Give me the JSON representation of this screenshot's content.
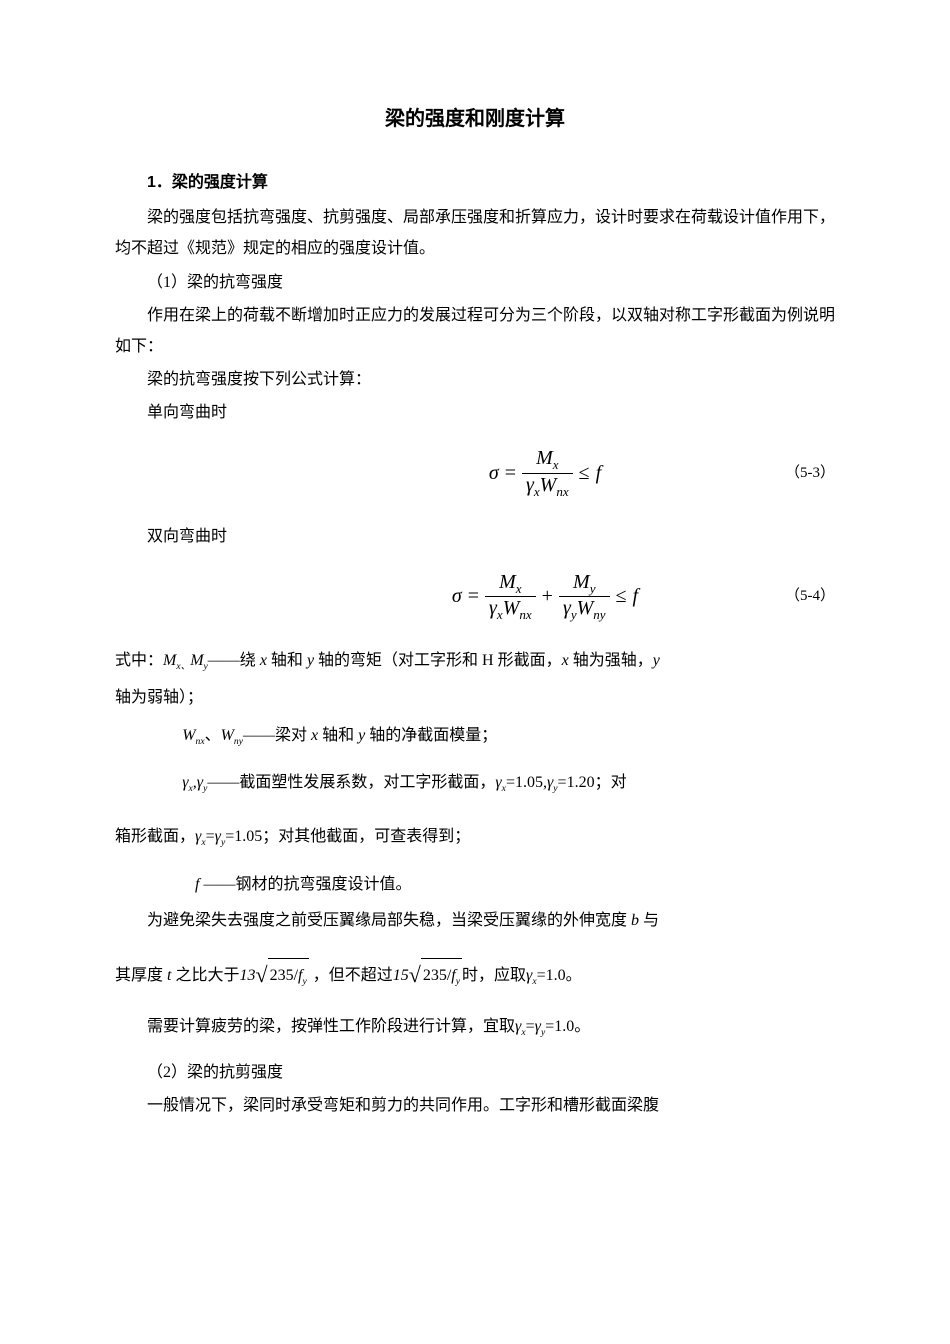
{
  "title": "梁的强度和刚度计算",
  "section1": {
    "number": "1．",
    "heading": "梁的强度计算",
    "intro": "梁的强度包括抗弯强度、抗剪强度、局部承压强度和折算应力，设计时要求在荷载设计值作用下，均不超过《规范》规定的相应的强度设计值。",
    "sub1": "（1）梁的抗弯强度",
    "p1": "作用在梁上的荷载不断增加时正应力的发展过程可分为三个阶段，以双轴对称工字形截面为例说明如下：",
    "p2": "梁的抗弯强度按下列公式计算：",
    "p3": "单向弯曲时",
    "p4": "双向弯曲时",
    "eq1_num": "（5-3）",
    "eq2_num": "（5-4）",
    "def_prefix": "式中：",
    "def1_sym_a": "M",
    "def1_sub_a": "x、",
    "def1_sym_b": "M",
    "def1_sub_b": "y",
    "def1_dash": "——",
    "def1_text_a": "绕 ",
    "def1_var_x": "x",
    "def1_text_b": " 轴和 ",
    "def1_var_y": "y",
    "def1_text_c": " 轴的弯矩（对工字形和 H 形截面，",
    "def1_text_d": " 轴为强轴，",
    "def1_text_e": "轴为弱轴）；",
    "def2_sym_a": "W",
    "def2_sub_a": "nx",
    "def2_sep": "、",
    "def2_sym_b": "W",
    "def2_sub_b": "ny",
    "def2_text": "——梁对 ",
    "def2_text2": " 轴和 ",
    "def2_text3": " 轴的净截面模量；",
    "def3_sym": "γ",
    "def3_sub_x": "x",
    "def3_sep": ",",
    "def3_sub_y": "y",
    "def3_text": "——截面塑性发展系数，对工字形截面，",
    "def3_eq1": "=1.05,",
    "def3_eq2": "=1.20",
    "def3_tail": "；对",
    "def3_cont_a": "箱形截面，",
    "def3_eq3": "=1.05",
    "def3_cont_b": "；对其他截面，可查表得到；",
    "def4_sym": "f",
    "def4_text": " ——钢材的抗弯强度设计值。",
    "p5_a": "为避免梁失去强度之前受压翼缘局部失稳，当梁受压翼缘的外伸宽度 ",
    "p5_var_b": "b",
    "p5_b": " 与",
    "p6_a": "其厚度 ",
    "p6_var_t": "t",
    "p6_b": " 之比大于",
    "p6_coef1": "13",
    "p6_sqrt1": "235/f",
    "p6_sqrt1_sub": "y",
    "p6_c": " ，但不超过",
    "p6_coef2": "15",
    "p6_sqrt2": "235/f",
    "p6_sqrt2_sub": "y",
    "p6_d": "时，应取",
    "p6_eq": "=1.0",
    "p6_e": "。",
    "p7_a": "需要计算疲劳的梁，按弹性工作阶段进行计算，宜取",
    "p7_eq": "=1.0",
    "p7_b": "。",
    "sub2": "（2）梁的抗剪强度",
    "p8": "一般情况下，梁同时承受弯矩和剪力的共同作用。工字形和槽形截面梁腹"
  },
  "math": {
    "sigma": "σ",
    "eq": "=",
    "le": "≤",
    "plus": "+",
    "f": "f",
    "M": "M",
    "W": "W",
    "gamma": "γ",
    "x": "x",
    "y": "y",
    "nx": "nx",
    "ny": "ny"
  }
}
